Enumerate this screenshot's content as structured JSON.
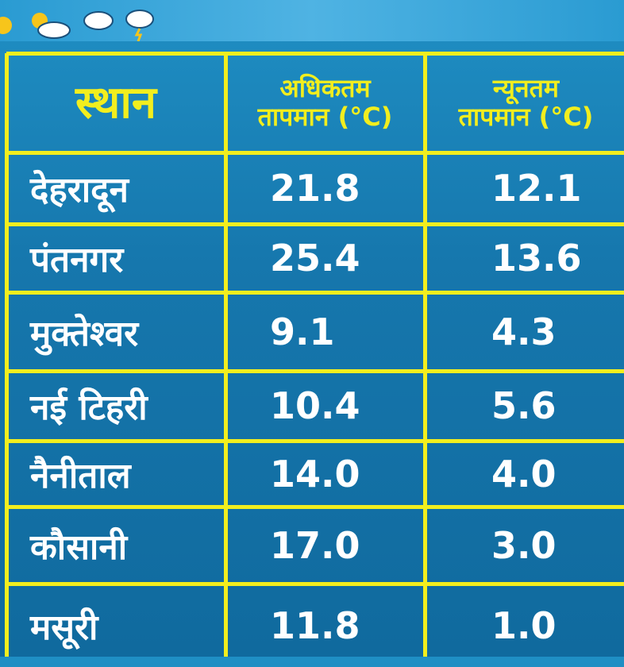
{
  "table": {
    "header": [
      "स्थान",
      [
        "अधिकतम",
        "तापमान (°C)"
      ],
      [
        "न्यूनतम",
        "तापमान (°C)"
      ]
    ],
    "rows": [
      [
        "देहरादून",
        "21.8",
        "12.1"
      ],
      [
        "पंतनगर",
        "25.4",
        "13.6"
      ],
      [
        "मुक्तेश्वर",
        "9.1",
        "4.3"
      ],
      [
        "नई टिहरी",
        "10.4",
        "5.6"
      ],
      [
        "नैनीताल",
        "14.0",
        "4.0"
      ],
      [
        "कौसानी",
        "17.0",
        "3.0"
      ],
      [
        "मसूरी",
        "11.8",
        "1.0"
      ]
    ]
  }
}
